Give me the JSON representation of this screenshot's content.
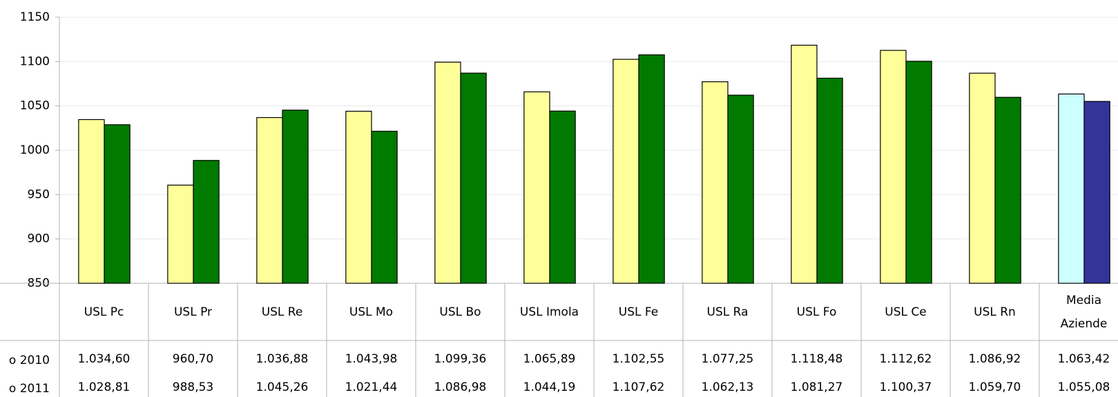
{
  "chart_data": {
    "type": "bar",
    "categories": [
      "USL Pc",
      "USL Pr",
      "USL Re",
      "USL Mo",
      "USL Bo",
      "USL Imola",
      "USL Fe",
      "USL Ra",
      "USL Fo",
      "USL Ce",
      "USL Rn",
      "Media Aziende"
    ],
    "series": [
      {
        "name": "o 2010",
        "color": "#ffff99",
        "colors": [
          "#ffff99",
          "#ffff99",
          "#ffff99",
          "#ffff99",
          "#ffff99",
          "#ffff99",
          "#ffff99",
          "#ffff99",
          "#ffff99",
          "#ffff99",
          "#ffff99",
          "#ccffff"
        ],
        "values": [
          1034.6,
          960.7,
          1036.88,
          1043.98,
          1099.36,
          1065.89,
          1102.55,
          1077.25,
          1118.48,
          1112.62,
          1086.92,
          1063.42
        ],
        "value_labels": [
          "1.034,60",
          "960,70",
          "1.036,88",
          "1.043,98",
          "1.099,36",
          "1.065,89",
          "1.102,55",
          "1.077,25",
          "1.118,48",
          "1.112,62",
          "1.086,92",
          "1.063,42"
        ]
      },
      {
        "name": "o 2011",
        "color": "#007a00",
        "colors": [
          "#007a00",
          "#007a00",
          "#007a00",
          "#007a00",
          "#007a00",
          "#007a00",
          "#007a00",
          "#007a00",
          "#007a00",
          "#007a00",
          "#007a00",
          "#333399"
        ],
        "values": [
          1028.81,
          988.53,
          1045.26,
          1021.44,
          1086.98,
          1044.19,
          1107.62,
          1062.13,
          1081.27,
          1100.37,
          1059.7,
          1055.08
        ],
        "value_labels": [
          "1.028,81",
          "988,53",
          "1.045,26",
          "1.021,44",
          "1.086,98",
          "1.044,19",
          "1.107,62",
          "1.062,13",
          "1.081,27",
          "1.100,37",
          "1.059,70",
          "1.055,08"
        ]
      }
    ],
    "ylim": [
      850,
      1150
    ],
    "yticks": [
      850,
      900,
      950,
      1000,
      1050,
      1100,
      1150
    ],
    "grid": true
  }
}
